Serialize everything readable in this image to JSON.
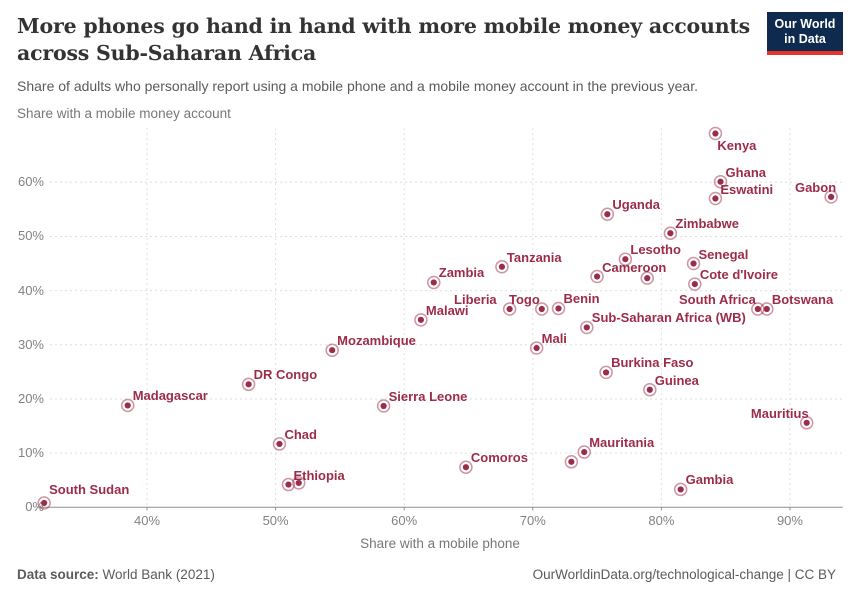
{
  "header": {
    "title": "More phones go hand in hand with more mobile money accounts across Sub-Saharan Africa",
    "subtitle": "Share of adults who personally report using a mobile phone and a mobile money account in the previous year.",
    "logo_line1": "Our World",
    "logo_line2": "in Data"
  },
  "footer": {
    "source_label": "Data source:",
    "source_value": " World Bank (2021)",
    "attribution": "OurWorldinData.org/technological-change | CC BY"
  },
  "colors": {
    "accent": "#9D2C49",
    "grid": "#dedede",
    "axis": "#8f8f8f",
    "tick_text": "#828282",
    "logo_bg": "#0E2A4E",
    "logo_bar": "#E5342A"
  },
  "chart_data": {
    "type": "scatter",
    "title": "More phones go hand in hand with more mobile money accounts across Sub-Saharan Africa",
    "xlabel": "Share with a mobile phone",
    "ylabel": "Share with a mobile money account",
    "xlim": [
      31.5,
      94.1
    ],
    "ylim": [
      0,
      70
    ],
    "x_ticks": [
      40,
      50,
      60,
      70,
      80,
      90
    ],
    "y_ticks": [
      0,
      10,
      20,
      30,
      40,
      50,
      60
    ],
    "grid": true,
    "legend_position": "none",
    "points": [
      {
        "name": "Kenya",
        "x": 84.2,
        "y": 69.0,
        "anchor": "below"
      },
      {
        "name": "Ghana",
        "x": 84.6,
        "y": 60.1,
        "anchor": "right"
      },
      {
        "name": "Gabon",
        "x": 93.2,
        "y": 57.3,
        "anchor": "left",
        "dx": 7
      },
      {
        "name": "Eswatini",
        "x": 84.2,
        "y": 57.0,
        "anchor": "right"
      },
      {
        "name": "Uganda",
        "x": 75.8,
        "y": 54.1,
        "anchor": "right"
      },
      {
        "name": "Zimbabwe",
        "x": 80.7,
        "y": 50.6,
        "anchor": "right"
      },
      {
        "name": "Lesotho",
        "x": 77.2,
        "y": 45.8,
        "anchor": "right"
      },
      {
        "name": "Senegal",
        "x": 82.5,
        "y": 45.0,
        "anchor": "right"
      },
      {
        "name": "Tanzania",
        "x": 67.6,
        "y": 44.4,
        "anchor": "right"
      },
      {
        "name": "Cameroon",
        "x": 75.0,
        "y": 42.6,
        "anchor": "right"
      },
      {
        "name": "",
        "x": 78.9,
        "y": 42.3,
        "anchor": "none"
      },
      {
        "name": "Zambia",
        "x": 62.3,
        "y": 41.5,
        "anchor": "right"
      },
      {
        "name": "Cote d'Ivoire",
        "x": 82.6,
        "y": 41.2,
        "anchor": "right"
      },
      {
        "name": "Benin",
        "x": 72.0,
        "y": 36.7,
        "anchor": "right"
      },
      {
        "name": "Liberia",
        "x": 68.2,
        "y": 36.6,
        "anchor": "left",
        "dx": -11
      },
      {
        "name": "Togo",
        "x": 70.7,
        "y": 36.6,
        "anchor": "left"
      },
      {
        "name": "South Africa",
        "x": 87.5,
        "y": 36.6,
        "anchor": "left"
      },
      {
        "name": "Botswana",
        "x": 88.2,
        "y": 36.6,
        "anchor": "right"
      },
      {
        "name": "Malawi",
        "x": 61.3,
        "y": 34.6,
        "anchor": "right"
      },
      {
        "name": "Sub-Saharan Africa (WB)",
        "x": 74.2,
        "y": 33.2,
        "anchor": "right"
      },
      {
        "name": "Mali",
        "x": 70.3,
        "y": 29.4,
        "anchor": "right"
      },
      {
        "name": "Mozambique",
        "x": 54.4,
        "y": 29.0,
        "anchor": "right"
      },
      {
        "name": "Burkina Faso",
        "x": 75.7,
        "y": 24.9,
        "anchor": "right"
      },
      {
        "name": "DR Congo",
        "x": 47.9,
        "y": 22.7,
        "anchor": "right"
      },
      {
        "name": "Guinea",
        "x": 79.1,
        "y": 21.7,
        "anchor": "right"
      },
      {
        "name": "Madagascar",
        "x": 38.5,
        "y": 18.8,
        "anchor": "right"
      },
      {
        "name": "Sierra Leone",
        "x": 58.4,
        "y": 18.7,
        "anchor": "right"
      },
      {
        "name": "Mauritius",
        "x": 91.3,
        "y": 15.6,
        "anchor": "left",
        "dx": 4
      },
      {
        "name": "Chad",
        "x": 50.3,
        "y": 11.7,
        "anchor": "right"
      },
      {
        "name": "Mauritania",
        "x": 74.0,
        "y": 10.2,
        "anchor": "right"
      },
      {
        "name": "",
        "x": 73.0,
        "y": 8.4,
        "anchor": "none"
      },
      {
        "name": "Comoros",
        "x": 64.8,
        "y": 7.4,
        "anchor": "right"
      },
      {
        "name": "",
        "x": 51.8,
        "y": 4.5,
        "anchor": "none"
      },
      {
        "name": "Ethiopia",
        "x": 51.0,
        "y": 4.2,
        "anchor": "right"
      },
      {
        "name": "Gambia",
        "x": 81.5,
        "y": 3.3,
        "anchor": "right"
      },
      {
        "name": "South Sudan",
        "x": 32.0,
        "y": 0.8,
        "anchor": "right",
        "dy": -4
      }
    ]
  }
}
